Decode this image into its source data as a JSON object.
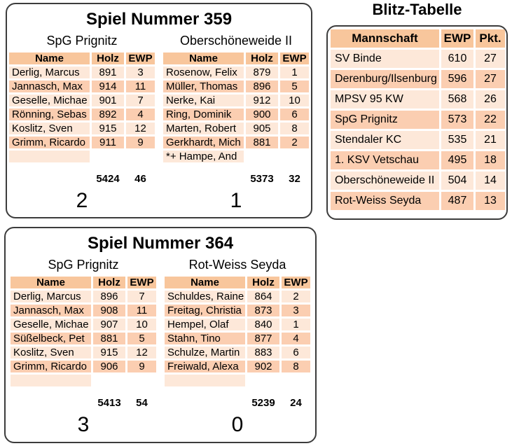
{
  "colors": {
    "header_bg": "#f8c69c",
    "row_dark": "#fbceb1",
    "row_light": "#fde8d9",
    "panel_border": "#3c3c3c"
  },
  "columns": {
    "name": "Name",
    "holz": "Holz",
    "ewp": "EWP"
  },
  "matches": [
    {
      "title": "Spiel Nummer 359",
      "teams": [
        {
          "name": "SpG Prignitz",
          "players": [
            {
              "name": "Derlig, Marcus",
              "holz": "891",
              "ewp": "3"
            },
            {
              "name": "Jannasch, Max",
              "holz": "914",
              "ewp": "11"
            },
            {
              "name": "Geselle, Michae",
              "holz": "901",
              "ewp": "7"
            },
            {
              "name": "Rönning, Sebas",
              "holz": "892",
              "ewp": "4"
            },
            {
              "name": "Koslitz, Sven",
              "holz": "915",
              "ewp": "12"
            },
            {
              "name": "Grimm, Ricardo",
              "holz": "911",
              "ewp": "9"
            }
          ],
          "substitute": "",
          "total_holz": "5424",
          "total_ewp": "46",
          "score": "2"
        },
        {
          "name": "Oberschöneweide II",
          "players": [
            {
              "name": "Rosenow, Felix",
              "holz": "879",
              "ewp": "1"
            },
            {
              "name": "Müller, Thomas",
              "holz": "896",
              "ewp": "5"
            },
            {
              "name": "Nerke, Kai",
              "holz": "912",
              "ewp": "10"
            },
            {
              "name": "Ring, Dominik",
              "holz": "900",
              "ewp": "6"
            },
            {
              "name": "Marten, Robert",
              "holz": "905",
              "ewp": "8"
            },
            {
              "name": "Gerkhardt, Mich",
              "holz": "881",
              "ewp": "2"
            }
          ],
          "substitute": "*+ Hampe, And",
          "total_holz": "5373",
          "total_ewp": "32",
          "score": "1"
        }
      ]
    },
    {
      "title": "Spiel Nummer 364",
      "teams": [
        {
          "name": "SpG Prignitz",
          "players": [
            {
              "name": "Derlig, Marcus",
              "holz": "896",
              "ewp": "7"
            },
            {
              "name": "Jannasch, Max",
              "holz": "908",
              "ewp": "11"
            },
            {
              "name": "Geselle, Michae",
              "holz": "907",
              "ewp": "10"
            },
            {
              "name": "Süßelbeck, Pet",
              "holz": "881",
              "ewp": "5"
            },
            {
              "name": "Koslitz, Sven",
              "holz": "915",
              "ewp": "12"
            },
            {
              "name": "Grimm, Ricardo",
              "holz": "906",
              "ewp": "9"
            }
          ],
          "substitute": "",
          "total_holz": "5413",
          "total_ewp": "54",
          "score": "3"
        },
        {
          "name": "Rot-Weiss Seyda",
          "players": [
            {
              "name": "Schuldes, Raine",
              "holz": "864",
              "ewp": "2"
            },
            {
              "name": "Freitag, Christia",
              "holz": "873",
              "ewp": "3"
            },
            {
              "name": "Hempel, Olaf",
              "holz": "840",
              "ewp": "1"
            },
            {
              "name": "Stahn, Tino",
              "holz": "877",
              "ewp": "4"
            },
            {
              "name": "Schulze, Martin",
              "holz": "883",
              "ewp": "6"
            },
            {
              "name": "Freiwald, Alexa",
              "holz": "902",
              "ewp": "8"
            }
          ],
          "substitute": "",
          "total_holz": "5239",
          "total_ewp": "24",
          "score": "0"
        }
      ]
    }
  ],
  "standings": {
    "title": "Blitz-Tabelle",
    "columns": {
      "team": "Mannschaft",
      "ewp": "EWP",
      "pkt": "Pkt."
    },
    "rows": [
      {
        "team": "SV Binde",
        "ewp": "610",
        "pkt": "27"
      },
      {
        "team": "Derenburg/Ilsenburg",
        "ewp": "596",
        "pkt": "27"
      },
      {
        "team": "MPSV 95 KW",
        "ewp": "568",
        "pkt": "26"
      },
      {
        "team": "SpG Prignitz",
        "ewp": "573",
        "pkt": "22"
      },
      {
        "team": "Stendaler KC",
        "ewp": "535",
        "pkt": "21"
      },
      {
        "team": "1. KSV Vetschau",
        "ewp": "495",
        "pkt": "18"
      },
      {
        "team": "Oberschöneweide II",
        "ewp": "504",
        "pkt": "14"
      },
      {
        "team": "Rot-Weiss Seyda",
        "ewp": "487",
        "pkt": "13"
      }
    ]
  }
}
